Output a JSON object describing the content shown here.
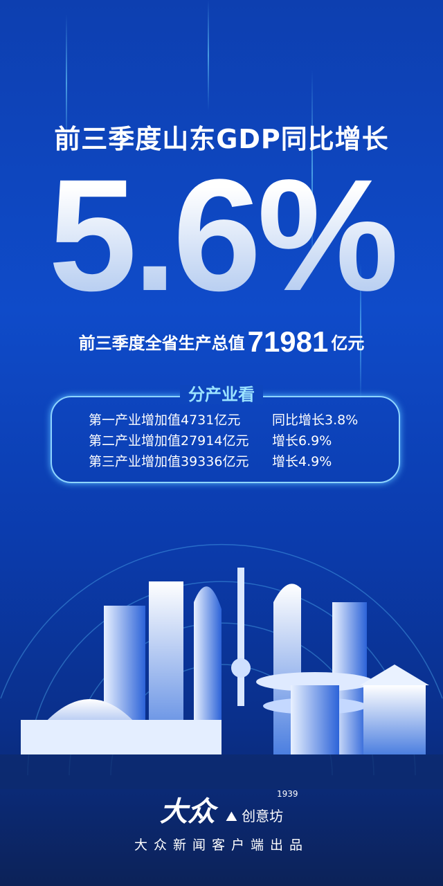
{
  "headline": "前三季度山东GDP同比增长",
  "growth_rate": "5.6%",
  "total": {
    "prefix": "前三季度全省生产总值",
    "value": "71981",
    "unit": "亿元"
  },
  "sectors": {
    "title": "分产业看",
    "rows": [
      {
        "value": "第一产业增加值4731亿元",
        "growth": "同比增长3.8%"
      },
      {
        "value": "第二产业增加值27914亿元",
        "growth": "增长6.9%"
      },
      {
        "value": "第三产业增加值39336亿元",
        "growth": "增长4.9%"
      }
    ]
  },
  "footer": {
    "logo": "大众",
    "logo2_year": "1939",
    "logo2": "创意坊",
    "credit": "大众新闻客户端出品"
  },
  "colors": {
    "background": "#0f4bc9",
    "accent": "#8fd5ff"
  }
}
